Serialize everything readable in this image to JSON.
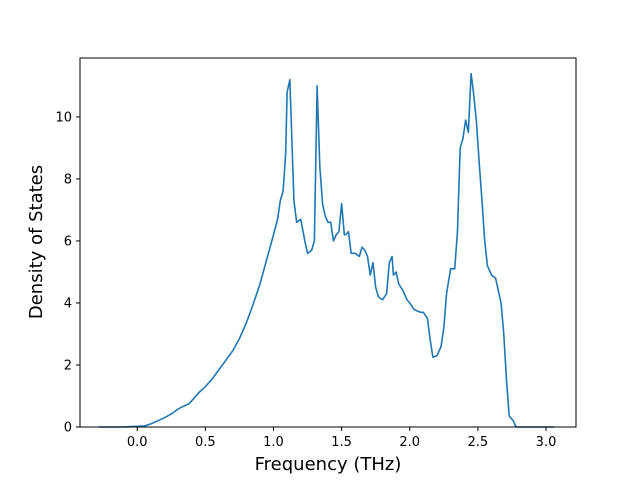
{
  "chart_data": {
    "type": "line",
    "title": "",
    "xlabel": "Frequency (THz)",
    "ylabel": "Density of States",
    "xlim": [
      -0.42,
      3.22
    ],
    "ylim": [
      0,
      11.9
    ],
    "xticks": [
      0.0,
      0.5,
      1.0,
      1.5,
      2.0,
      2.5,
      3.0
    ],
    "xtick_labels": [
      "0.0",
      "0.5",
      "1.0",
      "1.5",
      "2.0",
      "2.5",
      "3.0"
    ],
    "yticks": [
      0,
      2,
      4,
      6,
      8,
      10
    ],
    "ytick_labels": [
      "0",
      "2",
      "4",
      "6",
      "8",
      "10"
    ],
    "grid": false,
    "colors": {
      "line": "#1f77b4"
    },
    "series": [
      {
        "x": [
          -0.28,
          -0.1,
          0.05,
          0.1,
          0.15,
          0.2,
          0.25,
          0.3,
          0.33,
          0.38,
          0.42,
          0.45,
          0.5,
          0.55,
          0.6,
          0.65,
          0.7,
          0.75,
          0.8,
          0.85,
          0.9,
          0.95,
          1.0,
          1.03,
          1.05,
          1.07,
          1.08,
          1.09,
          1.1,
          1.12,
          1.15,
          1.17,
          1.2,
          1.23,
          1.25,
          1.28,
          1.3,
          1.32,
          1.34,
          1.36,
          1.38,
          1.4,
          1.42,
          1.44,
          1.46,
          1.48,
          1.5,
          1.52,
          1.53,
          1.55,
          1.57,
          1.6,
          1.63,
          1.65,
          1.67,
          1.69,
          1.71,
          1.73,
          1.75,
          1.77,
          1.8,
          1.83,
          1.85,
          1.87,
          1.88,
          1.9,
          1.92,
          1.95,
          1.98,
          2.0,
          2.03,
          2.05,
          2.08,
          2.1,
          2.13,
          2.15,
          2.17,
          2.2,
          2.23,
          2.25,
          2.27,
          2.3,
          2.33,
          2.35,
          2.37,
          2.39,
          2.41,
          2.43,
          2.45,
          2.47,
          2.49,
          2.51,
          2.53,
          2.55,
          2.57,
          2.6,
          2.63,
          2.65,
          2.67,
          2.69,
          2.71,
          2.73,
          2.76,
          2.78,
          2.8,
          3.06
        ],
        "y": [
          0.0,
          0.0,
          0.03,
          0.1,
          0.2,
          0.3,
          0.42,
          0.58,
          0.65,
          0.75,
          0.95,
          1.1,
          1.3,
          1.55,
          1.85,
          2.15,
          2.45,
          2.85,
          3.35,
          3.95,
          4.6,
          5.4,
          6.2,
          6.7,
          7.3,
          7.6,
          8.2,
          8.9,
          10.8,
          11.2,
          7.3,
          6.6,
          6.7,
          6.0,
          5.6,
          5.7,
          6.0,
          11.0,
          8.4,
          7.2,
          6.8,
          6.6,
          6.6,
          6.0,
          6.2,
          6.3,
          7.2,
          6.2,
          6.2,
          6.3,
          5.6,
          5.6,
          5.5,
          5.8,
          5.7,
          5.5,
          4.9,
          5.3,
          4.5,
          4.2,
          4.1,
          4.3,
          5.3,
          5.5,
          4.9,
          5.0,
          4.6,
          4.4,
          4.1,
          4.0,
          3.8,
          3.75,
          3.7,
          3.7,
          3.5,
          2.8,
          2.25,
          2.3,
          2.6,
          3.2,
          4.3,
          5.1,
          5.1,
          6.3,
          9.0,
          9.3,
          9.9,
          9.5,
          11.4,
          10.7,
          9.8,
          8.5,
          7.3,
          6.0,
          5.2,
          4.9,
          4.8,
          4.4,
          4.0,
          3.0,
          1.5,
          0.35,
          0.2,
          0.0,
          0.0,
          0.0
        ]
      }
    ]
  }
}
